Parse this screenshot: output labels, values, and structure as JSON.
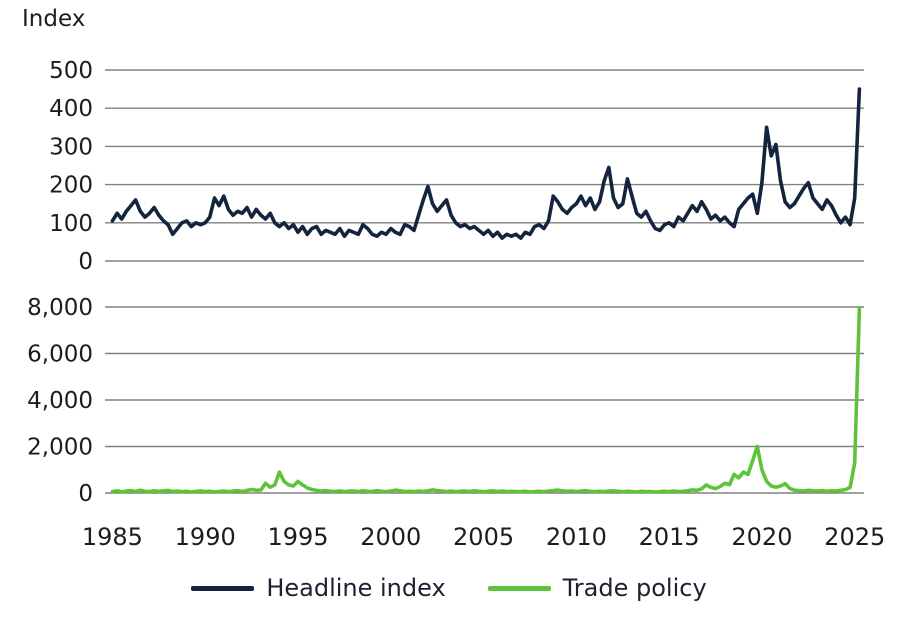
{
  "page": {
    "axis_title": "Index"
  },
  "colors": {
    "headline": "#13243E",
    "trade": "#5DC43A",
    "gridline": "#808080",
    "axis_text": "#1D1D1D"
  },
  "legend": {
    "items": [
      {
        "label": "Headline index",
        "color": "#13243E"
      },
      {
        "label": "Trade policy",
        "color": "#5DC43A"
      }
    ]
  },
  "x_axis": {
    "tick_years": [
      1985,
      1990,
      1995,
      2000,
      2005,
      2010,
      2015,
      2020,
      2025
    ],
    "tick_labels": [
      "1985",
      "1990",
      "1995",
      "2000",
      "2005",
      "2010",
      "2015",
      "2020",
      "2025"
    ]
  },
  "chart_data": [
    {
      "type": "line",
      "name": "headline-index",
      "series_label": "Headline index",
      "color_key": 0,
      "grid": true,
      "legend_position": "bottom",
      "xlim": [
        1984.6,
        2025.5
      ],
      "ylim": [
        0,
        500
      ],
      "yticks": [
        0,
        100,
        200,
        300,
        400,
        500
      ],
      "ytick_labels": [
        "0",
        "100",
        "200",
        "300",
        "400",
        "500"
      ],
      "x_start": 1985.0,
      "x_step": 0.25,
      "values": [
        105,
        125,
        110,
        130,
        145,
        160,
        130,
        115,
        125,
        140,
        120,
        105,
        95,
        70,
        85,
        100,
        105,
        90,
        100,
        95,
        100,
        115,
        165,
        145,
        170,
        135,
        120,
        130,
        125,
        140,
        115,
        135,
        120,
        110,
        125,
        100,
        90,
        100,
        85,
        95,
        75,
        90,
        70,
        85,
        90,
        70,
        80,
        75,
        70,
        85,
        65,
        80,
        75,
        70,
        95,
        85,
        70,
        65,
        75,
        70,
        85,
        75,
        70,
        95,
        90,
        80,
        120,
        160,
        195,
        150,
        130,
        145,
        160,
        120,
        100,
        90,
        95,
        85,
        90,
        80,
        70,
        80,
        65,
        75,
        60,
        70,
        65,
        70,
        60,
        75,
        70,
        90,
        95,
        85,
        105,
        170,
        155,
        135,
        125,
        140,
        150,
        170,
        145,
        165,
        135,
        155,
        210,
        245,
        165,
        140,
        150,
        215,
        170,
        125,
        115,
        130,
        105,
        85,
        80,
        95,
        100,
        90,
        115,
        105,
        125,
        145,
        130,
        155,
        135,
        110,
        120,
        105,
        115,
        100,
        90,
        135,
        150,
        165,
        175,
        125,
        205,
        350,
        275,
        305,
        210,
        155,
        140,
        150,
        170,
        190,
        205,
        165,
        150,
        135,
        160,
        145,
        120,
        100,
        115,
        95,
        165,
        450
      ]
    },
    {
      "type": "line",
      "name": "trade-policy",
      "series_label": "Trade policy",
      "color_key": 1,
      "grid": true,
      "legend_position": "bottom",
      "xlim": [
        1984.6,
        2025.5
      ],
      "ylim": [
        0,
        8000
      ],
      "yticks": [
        0,
        2000,
        4000,
        6000,
        8000
      ],
      "ytick_labels": [
        "0",
        "2,000",
        "4,000",
        "6,000",
        "8,000"
      ],
      "x_start": 1985.0,
      "x_step": 0.25,
      "values": [
        60,
        95,
        45,
        85,
        105,
        65,
        115,
        75,
        55,
        95,
        70,
        90,
        110,
        65,
        85,
        55,
        75,
        45,
        70,
        90,
        55,
        80,
        45,
        70,
        85,
        55,
        80,
        100,
        65,
        110,
        150,
        120,
        130,
        420,
        250,
        350,
        900,
        500,
        350,
        300,
        500,
        350,
        220,
        150,
        110,
        85,
        105,
        75,
        65,
        90,
        55,
        80,
        85,
        65,
        95,
        75,
        65,
        105,
        75,
        55,
        85,
        125,
        95,
        65,
        75,
        55,
        85,
        65,
        95,
        135,
        105,
        85,
        65,
        85,
        55,
        75,
        85,
        65,
        95,
        75,
        55,
        75,
        95,
        65,
        85,
        55,
        75,
        65,
        55,
        75,
        45,
        65,
        75,
        55,
        85,
        105,
        125,
        95,
        75,
        85,
        65,
        85,
        105,
        75,
        55,
        75,
        65,
        85,
        95,
        75,
        55,
        75,
        65,
        45,
        75,
        55,
        65,
        45,
        55,
        75,
        55,
        85,
        65,
        75,
        95,
        135,
        115,
        175,
        350,
        240,
        190,
        280,
        420,
        360,
        800,
        650,
        900,
        800,
        1400,
        2000,
        1000,
        500,
        300,
        250,
        300,
        400,
        200,
        120,
        105,
        85,
        115,
        95,
        85,
        105,
        75,
        95,
        85,
        115,
        145,
        240,
        1300,
        7950
      ]
    }
  ]
}
